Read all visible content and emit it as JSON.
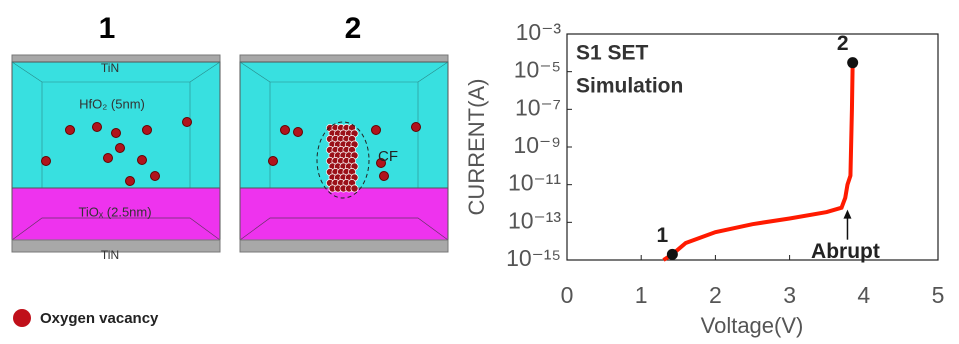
{
  "panels": [
    {
      "label": "1",
      "layers": [
        "TiN",
        "HfO₂ (5nm)",
        "TiOₓ (2.5nm)",
        "TiN"
      ]
    },
    {
      "label": "2",
      "annotation": "CF"
    }
  ],
  "legend_text": "Oxygen vacancy",
  "chart_data": {
    "type": "line",
    "title_lines": [
      "S1 SET",
      "Simulation"
    ],
    "x_label": "Voltage(V)",
    "y_label": "CURRENT(A)",
    "log_y": true,
    "xlim": [
      0,
      5
    ],
    "xticks": [
      0,
      1,
      2,
      3,
      4,
      5
    ],
    "ylim": [
      1e-15,
      0.001
    ],
    "yticks": [
      {
        "value": 1e-15,
        "label": "10⁻¹⁵"
      },
      {
        "value": 1e-13,
        "label": "10⁻¹³"
      },
      {
        "value": 1e-11,
        "label": "10⁻¹¹"
      },
      {
        "value": 1e-09,
        "label": "10⁻⁹"
      },
      {
        "value": 1e-07,
        "label": "10⁻⁷"
      },
      {
        "value": 1e-05,
        "label": "10⁻⁵"
      },
      {
        "value": 0.001,
        "label": "10⁻³"
      }
    ],
    "series": [
      {
        "color": "#ff1a00",
        "x": [
          1.3,
          1.42,
          1.6,
          2,
          2.5,
          3,
          3.5,
          3.7,
          3.75,
          3.78,
          3.82,
          3.84,
          3.85
        ],
        "values": [
          1e-15,
          2e-15,
          8e-15,
          3e-14,
          8e-14,
          1.6e-13,
          3.5e-13,
          6e-13,
          2e-12,
          1e-11,
          3e-11,
          1e-07,
          3e-05
        ]
      }
    ],
    "markers": [
      {
        "label": "1",
        "x": 1.42,
        "y": 2e-15
      },
      {
        "label": "2",
        "x": 3.85,
        "y": 3e-05
      }
    ],
    "annotation": {
      "text": "Abrupt",
      "x": 3.78,
      "y": 6e-13
    }
  }
}
